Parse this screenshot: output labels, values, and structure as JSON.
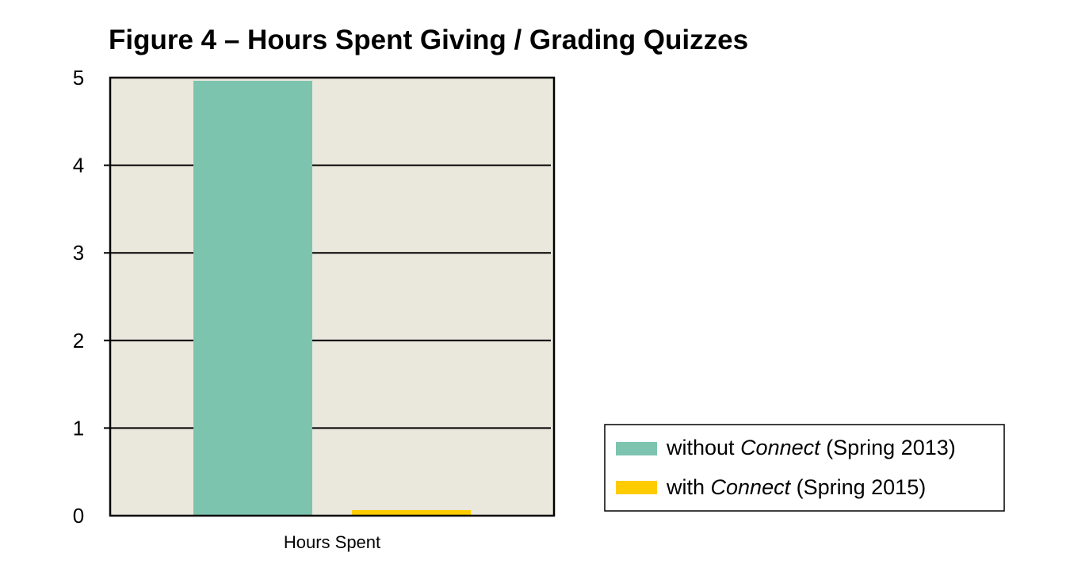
{
  "chart_data": {
    "type": "bar",
    "title": "Figure 4 – Hours Spent Giving / Grading Quizzes",
    "categories": [
      "Hours Spent"
    ],
    "series": [
      {
        "name_prefix": "without ",
        "name_emph": "Connect",
        "name_suffix": " (Spring 2013)",
        "values": [
          5
        ],
        "color": "#7dc4af"
      },
      {
        "name_prefix": "with ",
        "name_emph": "Connect",
        "name_suffix": " (Spring 2015)",
        "values": [
          0.1
        ],
        "color": "#ffcc00"
      }
    ],
    "ylim": [
      0,
      5
    ],
    "yticks": [
      0,
      1,
      2,
      3,
      4,
      5
    ],
    "grid": true,
    "plot_background": "#eae7dc",
    "legend_position": "right"
  }
}
